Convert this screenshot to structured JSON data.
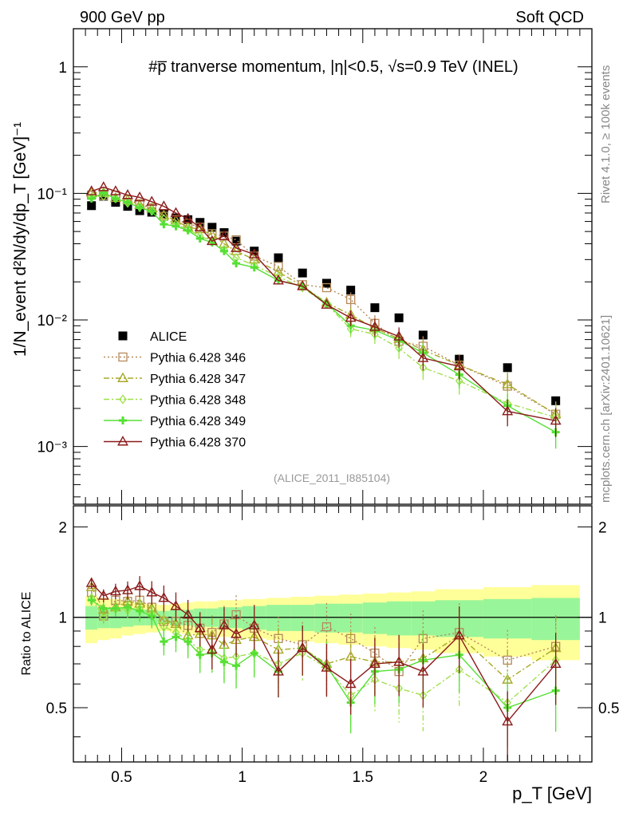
{
  "header": {
    "left": "900 GeV pp",
    "right": "Soft QCD"
  },
  "side_labels": {
    "rivet": "Rivet 4.1.0, ≥ 100k events",
    "mcplots": "mcplots.cern.ch [arXiv:2401.10621]"
  },
  "plot_title": "#p̅ tranverse momentum, |η|<0.5, √s=0.9 TeV (INEL)",
  "analysis_tag": "(ALICE_2011_I885104)",
  "colors": {
    "ALICE": "#000000",
    "Pythia 6.428 346": "#b5895a",
    "Pythia 6.428 347": "#a8a827",
    "Pythia 6.428 348": "#9ee04a",
    "Pythia 6.428 349": "#55e033",
    "Pythia 6.428 370": "#8b1a1a",
    "band_outer": "#ffff99",
    "band_inner": "#99f599"
  },
  "chart_data": [
    {
      "type": "scatter",
      "panel": "main",
      "ylabel": "1/N_event d²N/dy/dp_T [GeV]⁻¹",
      "yscale": "log",
      "ylim": [
        0.00035,
        2.0
      ],
      "xlim": [
        0.3,
        2.45
      ],
      "y_tick_labels": [
        "10⁻³",
        "10⁻²",
        "10⁻¹",
        "1"
      ],
      "y_tick_values": [
        0.001,
        0.01,
        0.1,
        1
      ],
      "x": [
        0.375,
        0.425,
        0.475,
        0.525,
        0.575,
        0.625,
        0.675,
        0.725,
        0.775,
        0.825,
        0.875,
        0.925,
        0.975,
        1.05,
        1.15,
        1.25,
        1.35,
        1.45,
        1.55,
        1.65,
        1.75,
        1.9,
        2.1,
        2.3
      ],
      "series": [
        {
          "name": "ALICE",
          "marker": "filled-square",
          "values": [
            0.08,
            0.095,
            0.085,
            0.079,
            0.073,
            0.071,
            0.068,
            0.064,
            0.062,
            0.059,
            0.054,
            0.049,
            0.042,
            0.035,
            0.031,
            0.0235,
            0.0195,
            0.0172,
            0.0125,
            0.0104,
            0.0076,
            0.0049,
            0.0042,
            0.0023
          ]
        },
        {
          "name": "Pythia 6.428 346",
          "marker": "open-square",
          "line": "dotted",
          "values": [
            0.097,
            0.096,
            0.097,
            0.089,
            0.083,
            0.077,
            0.066,
            0.062,
            0.058,
            0.054,
            0.048,
            0.046,
            0.043,
            0.032,
            0.0265,
            0.019,
            0.018,
            0.0145,
            0.0094,
            0.0068,
            0.0062,
            0.0044,
            0.003,
            0.0018
          ]
        },
        {
          "name": "Pythia 6.428 347",
          "marker": "open-triangle",
          "line": "dashdot",
          "values": [
            0.101,
            0.101,
            0.092,
            0.089,
            0.081,
            0.076,
            0.067,
            0.061,
            0.054,
            0.052,
            0.047,
            0.04,
            0.035,
            0.03,
            0.024,
            0.0185,
            0.0137,
            0.011,
            0.0086,
            0.0071,
            0.0058,
            0.0044,
            0.0031,
            0.0018
          ]
        },
        {
          "name": "Pythia 6.428 348",
          "marker": "open-diamond",
          "line": "dashdot",
          "values": [
            0.093,
            0.095,
            0.091,
            0.084,
            0.078,
            0.073,
            0.063,
            0.057,
            0.052,
            0.046,
            0.042,
            0.036,
            0.031,
            0.027,
            0.022,
            0.018,
            0.0133,
            0.0085,
            0.0077,
            0.006,
            0.0042,
            0.0033,
            0.0022,
            0.0017
          ]
        },
        {
          "name": "Pythia 6.428 349",
          "marker": "cross",
          "line": "solid",
          "values": [
            0.091,
            0.101,
            0.091,
            0.085,
            0.077,
            0.072,
            0.057,
            0.055,
            0.051,
            0.044,
            0.041,
            0.035,
            0.028,
            0.026,
            0.0205,
            0.0185,
            0.0135,
            0.009,
            0.0083,
            0.0069,
            0.0055,
            0.0037,
            0.0021,
            0.0013
          ]
        },
        {
          "name": "Pythia 6.428 370",
          "marker": "open-triangle",
          "line": "solid",
          "values": [
            0.104,
            0.112,
            0.104,
            0.097,
            0.093,
            0.086,
            0.079,
            0.07,
            0.063,
            0.054,
            0.042,
            0.046,
            0.037,
            0.033,
            0.0205,
            0.0185,
            0.0132,
            0.0104,
            0.0088,
            0.0074,
            0.005,
            0.0043,
            0.0019,
            0.0016
          ]
        }
      ]
    },
    {
      "type": "line",
      "panel": "ratio",
      "ylabel": "Ratio to ALICE",
      "xlabel": "p_T [GeV]",
      "ylim": [
        0.33,
        2.35
      ],
      "xlim": [
        0.3,
        2.45
      ],
      "y_tick_labels": [
        "0.5",
        "1",
        "2"
      ],
      "y_tick_values": [
        0.5,
        1,
        2
      ],
      "x_tick_labels": [
        "0.5",
        "1",
        "1.5",
        "2"
      ],
      "x_tick_values": [
        0.5,
        1,
        1.5,
        2
      ],
      "band_edges": [
        0.35,
        0.4,
        0.45,
        0.5,
        0.55,
        0.6,
        0.65,
        0.7,
        0.75,
        0.8,
        0.85,
        0.9,
        0.95,
        1.0,
        1.1,
        1.2,
        1.3,
        1.4,
        1.5,
        1.6,
        1.7,
        1.8,
        2.0,
        2.2,
        2.4
      ],
      "band_outer": [
        0.18,
        0.16,
        0.15,
        0.13,
        0.12,
        0.11,
        0.1,
        0.11,
        0.12,
        0.13,
        0.13,
        0.14,
        0.14,
        0.15,
        0.16,
        0.17,
        0.18,
        0.19,
        0.2,
        0.21,
        0.22,
        0.24,
        0.26,
        0.28
      ],
      "band_inner": [
        0.09,
        0.08,
        0.08,
        0.07,
        0.06,
        0.06,
        0.05,
        0.06,
        0.06,
        0.07,
        0.07,
        0.08,
        0.08,
        0.09,
        0.1,
        0.1,
        0.11,
        0.11,
        0.12,
        0.13,
        0.13,
        0.14,
        0.15,
        0.16
      ],
      "reference_line": 1,
      "x": [
        0.375,
        0.425,
        0.475,
        0.525,
        0.575,
        0.625,
        0.675,
        0.725,
        0.775,
        0.825,
        0.875,
        0.925,
        0.975,
        1.05,
        1.15,
        1.25,
        1.35,
        1.45,
        1.55,
        1.65,
        1.75,
        1.9,
        2.1,
        2.3
      ],
      "series": [
        {
          "name": "Pythia 6.428 346",
          "values": [
            1.21,
            1.01,
            1.14,
            1.13,
            1.14,
            1.08,
            0.97,
            0.97,
            0.94,
            0.92,
            0.89,
            0.95,
            1.02,
            0.92,
            0.85,
            0.81,
            0.93,
            0.85,
            0.76,
            0.66,
            0.85,
            0.89,
            0.72,
            0.8
          ]
        },
        {
          "name": "Pythia 6.428 347",
          "values": [
            1.26,
            1.06,
            1.08,
            1.13,
            1.11,
            1.07,
            0.98,
            0.95,
            0.87,
            0.88,
            0.87,
            0.81,
            0.84,
            0.86,
            0.78,
            0.79,
            0.7,
            0.74,
            0.71,
            0.71,
            0.73,
            0.87,
            0.62,
            0.79
          ]
        },
        {
          "name": "Pythia 6.428 348",
          "values": [
            1.16,
            1.0,
            1.07,
            1.06,
            1.07,
            1.03,
            0.93,
            0.89,
            0.84,
            0.78,
            0.78,
            0.73,
            0.74,
            0.76,
            0.7,
            0.76,
            0.68,
            0.55,
            0.62,
            0.58,
            0.55,
            0.67,
            0.52,
            0.72
          ]
        },
        {
          "name": "Pythia 6.428 349",
          "values": [
            1.14,
            1.07,
            1.07,
            1.08,
            1.05,
            1.01,
            0.83,
            0.86,
            0.83,
            0.75,
            0.76,
            0.71,
            0.69,
            0.76,
            0.66,
            0.79,
            0.69,
            0.52,
            0.66,
            0.67,
            0.72,
            0.75,
            0.5,
            0.57
          ]
        },
        {
          "name": "Pythia 6.428 370",
          "values": [
            1.3,
            1.18,
            1.22,
            1.23,
            1.27,
            1.21,
            1.16,
            1.09,
            1.02,
            0.92,
            0.78,
            0.94,
            0.88,
            0.94,
            0.66,
            0.79,
            0.68,
            0.6,
            0.7,
            0.71,
            0.66,
            0.87,
            0.45,
            0.7
          ]
        }
      ]
    }
  ]
}
